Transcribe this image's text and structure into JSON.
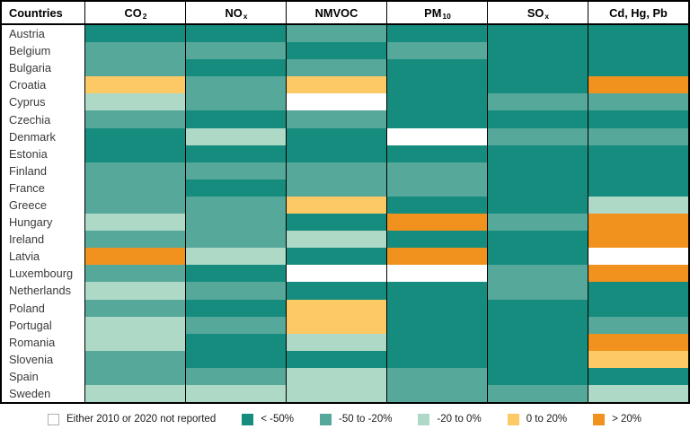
{
  "header": {
    "countries_label": "Countries",
    "columns": [
      {
        "base": "CO",
        "sub": "2"
      },
      {
        "base": "NO",
        "sub": "x"
      },
      {
        "base": "NMVOC",
        "sub": ""
      },
      {
        "base": "PM",
        "sub": "10"
      },
      {
        "base": "SO",
        "sub": "x"
      },
      {
        "base": "Cd, Hg, Pb",
        "sub": ""
      }
    ]
  },
  "colors": {
    "not_reported": "#ffffff",
    "lt_m50": "#168c7e",
    "m50_m20": "#56a89b",
    "m20_0": "#aed9c6",
    "p0_20": "#fdc964",
    "gt_20": "#f2921e"
  },
  "legend": {
    "items": [
      {
        "key": "not_reported",
        "label": "Either 2010 or 2020 not reported"
      },
      {
        "key": "lt_m50",
        "label": "< -50%"
      },
      {
        "key": "m50_m20",
        "label": "-50 to -20%"
      },
      {
        "key": "m20_0",
        "label": "-20 to 0%"
      },
      {
        "key": "p0_20",
        "label": "0 to 20%"
      },
      {
        "key": "gt_20",
        "label": "> 20%"
      }
    ]
  },
  "chart_data": {
    "type": "heatmap",
    "columns": [
      "CO2",
      "NOx",
      "NMVOC",
      "PM10",
      "SOx",
      "Cd, Hg, Pb"
    ],
    "categories_legend": [
      "Either 2010 or 2020 not reported",
      "< -50%",
      "-50 to -20%",
      "-20 to 0%",
      "0 to 20%",
      "> 20%"
    ],
    "rows": [
      {
        "country": "Austria",
        "values": [
          "lt_m50",
          "lt_m50",
          "m50_m20",
          "lt_m50",
          "lt_m50",
          "lt_m50"
        ]
      },
      {
        "country": "Belgium",
        "values": [
          "m50_m20",
          "m50_m20",
          "lt_m50",
          "m50_m20",
          "lt_m50",
          "lt_m50"
        ]
      },
      {
        "country": "Bulgaria",
        "values": [
          "m50_m20",
          "lt_m50",
          "m50_m20",
          "lt_m50",
          "lt_m50",
          "lt_m50"
        ]
      },
      {
        "country": "Croatia",
        "values": [
          "p0_20",
          "m50_m20",
          "p0_20",
          "lt_m50",
          "lt_m50",
          "gt_20"
        ]
      },
      {
        "country": "Cyprus",
        "values": [
          "m20_0",
          "m50_m20",
          "not_reported",
          "lt_m50",
          "m50_m20",
          "m50_m20"
        ]
      },
      {
        "country": "Czechia",
        "values": [
          "m50_m20",
          "lt_m50",
          "m50_m20",
          "lt_m50",
          "lt_m50",
          "lt_m50"
        ]
      },
      {
        "country": "Denmark",
        "values": [
          "lt_m50",
          "m20_0",
          "lt_m50",
          "not_reported",
          "m50_m20",
          "m50_m20"
        ]
      },
      {
        "country": "Estonia",
        "values": [
          "lt_m50",
          "lt_m50",
          "lt_m50",
          "lt_m50",
          "lt_m50",
          "lt_m50"
        ]
      },
      {
        "country": "Finland",
        "values": [
          "m50_m20",
          "m50_m20",
          "m50_m20",
          "m50_m20",
          "lt_m50",
          "lt_m50"
        ]
      },
      {
        "country": "France",
        "values": [
          "m50_m20",
          "lt_m50",
          "m50_m20",
          "m50_m20",
          "lt_m50",
          "lt_m50"
        ]
      },
      {
        "country": "Greece",
        "values": [
          "m50_m20",
          "m50_m20",
          "p0_20",
          "lt_m50",
          "lt_m50",
          "m20_0"
        ]
      },
      {
        "country": "Hungary",
        "values": [
          "m20_0",
          "m50_m20",
          "lt_m50",
          "gt_20",
          "m50_m20",
          "gt_20"
        ]
      },
      {
        "country": "Ireland",
        "values": [
          "m50_m20",
          "m50_m20",
          "m20_0",
          "lt_m50",
          "lt_m50",
          "gt_20"
        ]
      },
      {
        "country": "Latvia",
        "values": [
          "gt_20",
          "m20_0",
          "lt_m50",
          "gt_20",
          "lt_m50",
          "not_reported"
        ]
      },
      {
        "country": "Luxembourg",
        "values": [
          "m50_m20",
          "lt_m50",
          "not_reported",
          "not_reported",
          "m50_m20",
          "gt_20"
        ]
      },
      {
        "country": "Netherlands",
        "values": [
          "m20_0",
          "m50_m20",
          "lt_m50",
          "lt_m50",
          "m50_m20",
          "lt_m50"
        ]
      },
      {
        "country": "Poland",
        "values": [
          "m50_m20",
          "lt_m50",
          "p0_20",
          "lt_m50",
          "lt_m50",
          "lt_m50"
        ]
      },
      {
        "country": "Portugal",
        "values": [
          "m20_0",
          "m50_m20",
          "p0_20",
          "lt_m50",
          "lt_m50",
          "m50_m20"
        ]
      },
      {
        "country": "Romania",
        "values": [
          "m20_0",
          "lt_m50",
          "m20_0",
          "lt_m50",
          "lt_m50",
          "gt_20"
        ]
      },
      {
        "country": "Slovenia",
        "values": [
          "m50_m20",
          "lt_m50",
          "lt_m50",
          "lt_m50",
          "lt_m50",
          "p0_20"
        ]
      },
      {
        "country": "Spain",
        "values": [
          "m50_m20",
          "m50_m20",
          "m20_0",
          "m50_m20",
          "lt_m50",
          "lt_m50"
        ]
      },
      {
        "country": "Sweden",
        "values": [
          "m20_0",
          "m20_0",
          "m20_0",
          "m50_m20",
          "m50_m20",
          "m20_0"
        ]
      }
    ]
  }
}
